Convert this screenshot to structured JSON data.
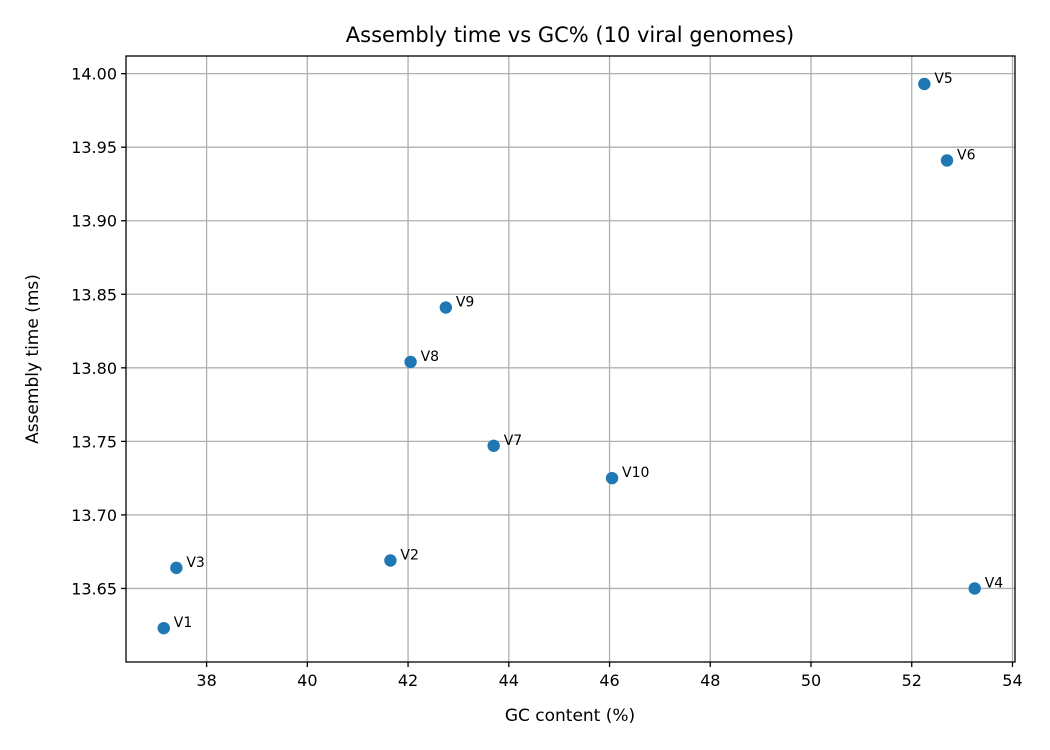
{
  "chart_data": {
    "type": "scatter",
    "title": "Assembly time vs GC% (10 viral genomes)",
    "xlabel": "GC content (%)",
    "ylabel": "Assembly time (ms)",
    "xlim": [
      36.4,
      54.05
    ],
    "ylim": [
      13.6,
      14.012
    ],
    "xticks": [
      38,
      40,
      42,
      44,
      46,
      48,
      50,
      52,
      54
    ],
    "yticks": [
      13.65,
      13.7,
      13.75,
      13.8,
      13.85,
      13.9,
      13.95,
      14.0
    ],
    "grid": true,
    "color": "#1f77b4",
    "points": [
      {
        "label": "V1",
        "x": 37.15,
        "y": 13.623
      },
      {
        "label": "V2",
        "x": 41.65,
        "y": 13.669
      },
      {
        "label": "V3",
        "x": 37.4,
        "y": 13.664
      },
      {
        "label": "V4",
        "x": 53.25,
        "y": 13.65
      },
      {
        "label": "V5",
        "x": 52.25,
        "y": 13.993
      },
      {
        "label": "V6",
        "x": 52.7,
        "y": 13.941
      },
      {
        "label": "V7",
        "x": 43.7,
        "y": 13.747
      },
      {
        "label": "V8",
        "x": 42.05,
        "y": 13.804
      },
      {
        "label": "V9",
        "x": 42.75,
        "y": 13.841
      },
      {
        "label": "V10",
        "x": 46.05,
        "y": 13.725
      }
    ]
  }
}
